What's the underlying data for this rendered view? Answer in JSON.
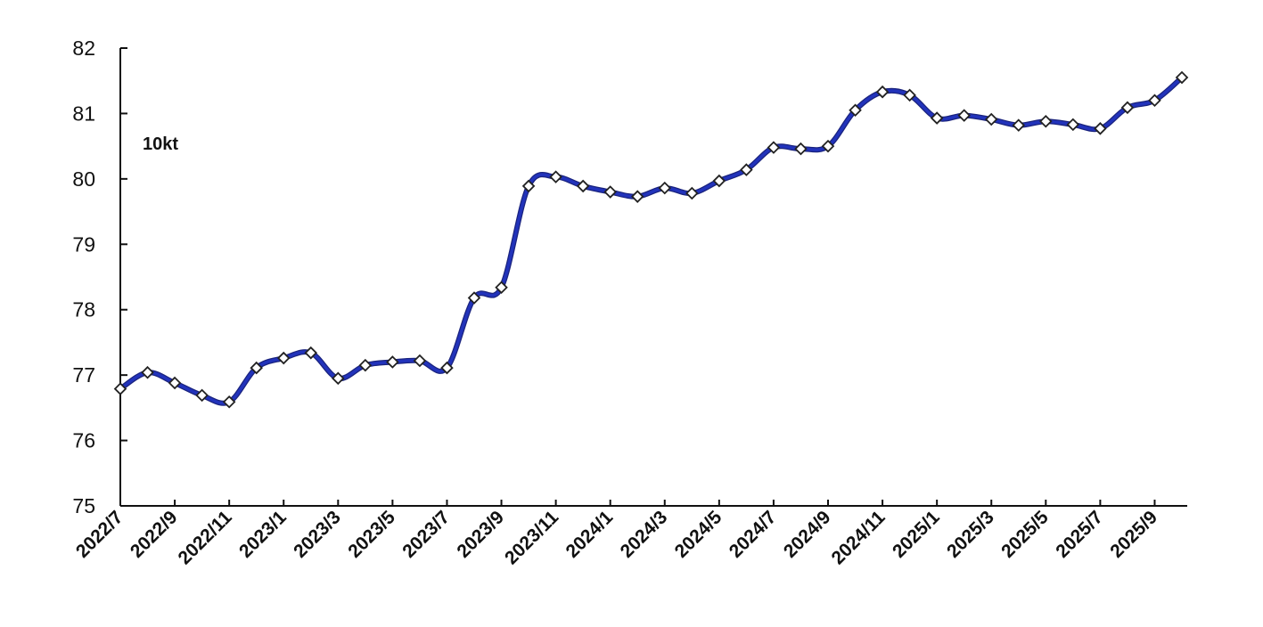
{
  "chart_data": {
    "type": "line",
    "title": "",
    "annotation": "10kt",
    "xlabel": "",
    "ylabel": "",
    "ylim": [
      75,
      82
    ],
    "yticks": [
      75,
      76,
      77,
      78,
      79,
      80,
      81,
      82
    ],
    "grid": false,
    "x": [
      "2022/7",
      "2022/8",
      "2022/9",
      "2022/10",
      "2022/11",
      "2022/12",
      "2023/1",
      "2023/2",
      "2023/3",
      "2023/4",
      "2023/5",
      "2023/6",
      "2023/7",
      "2023/8",
      "2023/9",
      "2023/10",
      "2023/11",
      "2023/12",
      "2024/1",
      "2024/2",
      "2024/3",
      "2024/4",
      "2024/5",
      "2024/6",
      "2024/7",
      "2024/8",
      "2024/9",
      "2024/10",
      "2024/11",
      "2024/12",
      "2025/1",
      "2025/2",
      "2025/3",
      "2025/4",
      "2025/5",
      "2025/6",
      "2025/7",
      "2025/8",
      "2025/9",
      "2025/10"
    ],
    "xtick_labels": [
      "2022/7",
      "2022/9",
      "2022/11",
      "2023/1",
      "2023/3",
      "2023/5",
      "2023/7",
      "2023/9",
      "2023/11",
      "2024/1",
      "2024/3",
      "2024/5",
      "2024/7",
      "2024/9",
      "2024/11",
      "2025/1",
      "2025/3",
      "2025/5",
      "2025/7",
      "2025/9"
    ],
    "series": [
      {
        "values": [
          76.79,
          77.04,
          76.88,
          76.69,
          76.59,
          77.11,
          77.26,
          77.34,
          76.95,
          77.15,
          77.2,
          77.22,
          77.11,
          78.18,
          78.34,
          79.89,
          80.03,
          79.89,
          79.8,
          79.73,
          79.86,
          79.78,
          79.97,
          80.14,
          80.48,
          80.46,
          80.5,
          81.05,
          81.33,
          81.28,
          80.93,
          80.97,
          80.91,
          80.82,
          80.88,
          80.83,
          80.77,
          81.09,
          81.2,
          81.55
        ],
        "color": "#2233bb",
        "marker": "diamond"
      }
    ]
  }
}
